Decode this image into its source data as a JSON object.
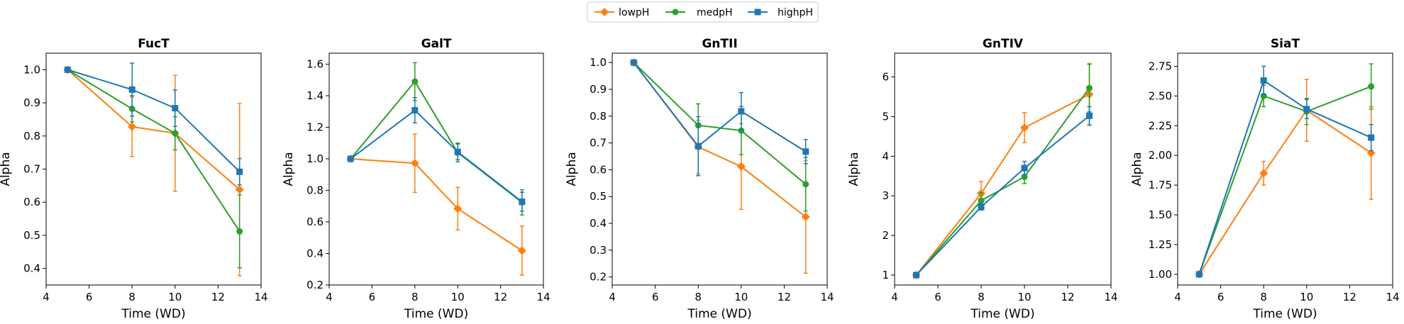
{
  "colors": {
    "lowpH": "#ff7f0e",
    "medpH": "#2ca02c",
    "highpH": "#1f77b4"
  },
  "legend": {
    "placement": "top-center",
    "entries": [
      {
        "name": "lowpH",
        "marker": "diamond",
        "color": "#ff7f0e"
      },
      {
        "name": "medpH",
        "marker": "circle",
        "color": "#2ca02c"
      },
      {
        "name": "highpH",
        "marker": "square",
        "color": "#1f77b4"
      }
    ]
  },
  "chart_data": [
    {
      "type": "line",
      "title": "FucT",
      "xlabel": "Time (WD)",
      "ylabel": "Alpha",
      "xlim": [
        4,
        14
      ],
      "ylim": [
        0.35,
        1.05
      ],
      "xticks": [
        4,
        6,
        8,
        10,
        12,
        14
      ],
      "yticks": [
        0.4,
        0.5,
        0.6,
        0.7,
        0.8,
        0.9,
        1.0
      ],
      "ytick_labels": [
        "0.4",
        "0.5",
        "0.6",
        "0.7",
        "0.8",
        "0.9",
        "1.0"
      ],
      "x": [
        5,
        8,
        10,
        13
      ],
      "series": [
        {
          "name": "lowpH",
          "values": [
            1.0,
            0.828,
            0.808,
            0.638
          ],
          "errors": [
            0,
            0.09,
            0.175,
            0.26
          ]
        },
        {
          "name": "medpH",
          "values": [
            1.0,
            0.882,
            0.808,
            0.512
          ],
          "errors": [
            0,
            0.04,
            0.05,
            0.11
          ]
        },
        {
          "name": "highpH",
          "values": [
            1.0,
            0.94,
            0.884,
            0.692
          ],
          "errors": [
            0,
            0.08,
            0.055,
            0.04
          ]
        }
      ]
    },
    {
      "type": "line",
      "title": "GalT",
      "xlabel": "Time (WD)",
      "ylabel": "Alpha",
      "xlim": [
        4,
        14
      ],
      "ylim": [
        0.2,
        1.67
      ],
      "xticks": [
        4,
        6,
        8,
        10,
        12,
        14
      ],
      "yticks": [
        0.2,
        0.4,
        0.6,
        0.8,
        1.0,
        1.2,
        1.4,
        1.6
      ],
      "ytick_labels": [
        "0.2",
        "0.4",
        "0.6",
        "0.8",
        "1.0",
        "1.2",
        "1.4",
        "1.6"
      ],
      "x": [
        5,
        8,
        10,
        13
      ],
      "series": [
        {
          "name": "lowpH",
          "values": [
            1.0,
            0.972,
            0.684,
            0.418
          ],
          "errors": [
            0,
            0.185,
            0.135,
            0.155
          ]
        },
        {
          "name": "medpH",
          "values": [
            1.0,
            1.49,
            1.04,
            0.724
          ],
          "errors": [
            0,
            0.12,
            0.06,
            0.08
          ]
        },
        {
          "name": "highpH",
          "values": [
            1.0,
            1.308,
            1.044,
            0.728
          ],
          "errors": [
            0,
            0.08,
            0.05,
            0.06
          ]
        }
      ]
    },
    {
      "type": "line",
      "title": "GnTII",
      "xlabel": "Time (WD)",
      "ylabel": "Alpha",
      "xlim": [
        4,
        14
      ],
      "ylim": [
        0.17,
        1.035
      ],
      "xticks": [
        4,
        6,
        8,
        10,
        12,
        14
      ],
      "yticks": [
        0.2,
        0.3,
        0.4,
        0.5,
        0.6,
        0.7,
        0.8,
        0.9,
        1.0
      ],
      "ytick_labels": [
        "0.2",
        "0.3",
        "0.4",
        "0.5",
        "0.6",
        "0.7",
        "0.8",
        "0.9",
        "1.0"
      ],
      "x": [
        5,
        8,
        10,
        13
      ],
      "series": [
        {
          "name": "lowpH",
          "values": [
            1.0,
            0.685,
            0.612,
            0.424
          ],
          "errors": [
            0,
            0.1,
            0.16,
            0.21
          ]
        },
        {
          "name": "medpH",
          "values": [
            1.0,
            0.766,
            0.746,
            0.546
          ],
          "errors": [
            0,
            0.08,
            0.09,
            0.1
          ]
        },
        {
          "name": "highpH",
          "values": [
            1.0,
            0.688,
            0.818,
            0.668
          ],
          "errors": [
            0,
            0.11,
            0.07,
            0.045
          ]
        }
      ]
    },
    {
      "type": "line",
      "title": "GnTIV",
      "xlabel": "Time (WD)",
      "ylabel": "Alpha",
      "xlim": [
        4,
        14
      ],
      "ylim": [
        0.75,
        6.6
      ],
      "xticks": [
        4,
        6,
        8,
        10,
        12,
        14
      ],
      "yticks": [
        1,
        2,
        3,
        4,
        5,
        6
      ],
      "ytick_labels": [
        "1",
        "2",
        "3",
        "4",
        "5",
        "6"
      ],
      "x": [
        5,
        8,
        10,
        13
      ],
      "series": [
        {
          "name": "lowpH",
          "values": [
            1.0,
            3.06,
            4.72,
            5.56
          ],
          "errors": [
            0,
            0.3,
            0.38,
            0.78
          ]
        },
        {
          "name": "medpH",
          "values": [
            1.0,
            2.88,
            3.48,
            5.72
          ],
          "errors": [
            0,
            0.2,
            0.17,
            0.6
          ]
        },
        {
          "name": "highpH",
          "values": [
            1.0,
            2.72,
            3.7,
            5.02
          ],
          "errors": [
            0,
            0.08,
            0.17,
            0.23
          ]
        }
      ]
    },
    {
      "type": "line",
      "title": "SiaT",
      "xlabel": "Time (WD)",
      "ylabel": "Alpha",
      "xlim": [
        4,
        14
      ],
      "ylim": [
        0.91,
        2.86
      ],
      "xticks": [
        4,
        6,
        8,
        10,
        12,
        14
      ],
      "yticks": [
        1.0,
        1.25,
        1.5,
        1.75,
        2.0,
        2.25,
        2.5,
        2.75
      ],
      "ytick_labels": [
        "1.00",
        "1.25",
        "1.50",
        "1.75",
        "2.00",
        "2.25",
        "2.50",
        "2.75"
      ],
      "x": [
        5,
        8,
        10,
        13
      ],
      "series": [
        {
          "name": "lowpH",
          "values": [
            1.0,
            1.85,
            2.38,
            2.02
          ],
          "errors": [
            0,
            0.1,
            0.26,
            0.39
          ]
        },
        {
          "name": "medpH",
          "values": [
            1.0,
            2.5,
            2.37,
            2.58
          ],
          "errors": [
            0,
            0.09,
            0.11,
            0.19
          ]
        },
        {
          "name": "highpH",
          "values": [
            1.0,
            2.63,
            2.39,
            2.15
          ],
          "errors": [
            0,
            0.12,
            0.08,
            0.11
          ]
        }
      ]
    }
  ]
}
